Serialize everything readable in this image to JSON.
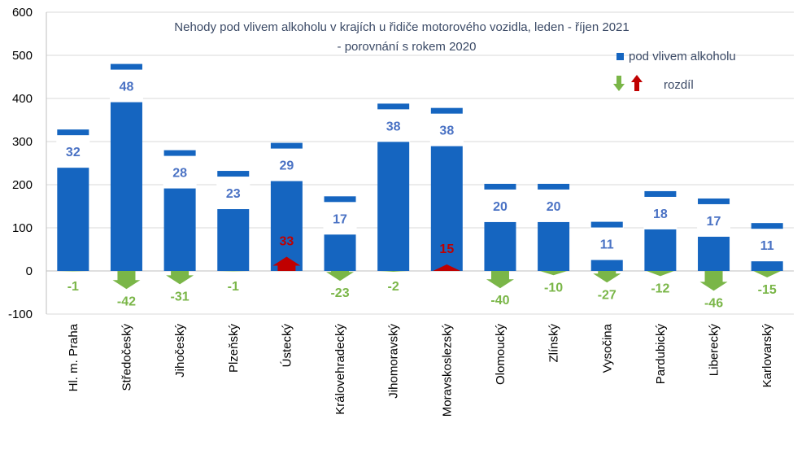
{
  "chart_data": {
    "type": "bar",
    "title": "Nehody pod vlivem alkoholu v krajích u řidiče motorového vozidla,  leden - říjen 2021",
    "subtitle": "- porovnání s rokem 2020",
    "ylim": [
      -100,
      600
    ],
    "yticks": [
      -100,
      0,
      100,
      200,
      300,
      400,
      500,
      600
    ],
    "grid": true,
    "legend_position": "top-right",
    "categories": [
      "Hl. m. Praha",
      "Středočeský",
      "Jihočeský",
      "Plzeňský",
      "Ústecký",
      "Královehradecký",
      "Jihomoravský",
      "Moravskoslezský",
      "Olomoucký",
      "Zlínský",
      "Vysočina",
      "Pardubický",
      "Liberecký",
      "Karlovarský"
    ],
    "series": [
      {
        "name": "pod vlivem alkoholu",
        "values": [
          328,
          480,
          280,
          232,
          297,
          173,
          388,
          378,
          202,
          202,
          114,
          185,
          168,
          111
        ],
        "percent_labels": [
          "32",
          "48",
          "28",
          "23",
          "29",
          "17",
          "38",
          "38",
          "20",
          "20",
          "11",
          "18",
          "17",
          "11"
        ]
      },
      {
        "name": "rozdíl",
        "values": [
          -1,
          -42,
          -31,
          -1,
          33,
          -23,
          -2,
          15,
          -40,
          -10,
          -27,
          -12,
          -46,
          -15
        ]
      }
    ],
    "colors": {
      "bar": "#1565c0",
      "label": "#4a72c4",
      "up": "#c00000",
      "down": "#7ab648",
      "grid": "#d9d9d9",
      "title": "#3b4a66"
    }
  }
}
